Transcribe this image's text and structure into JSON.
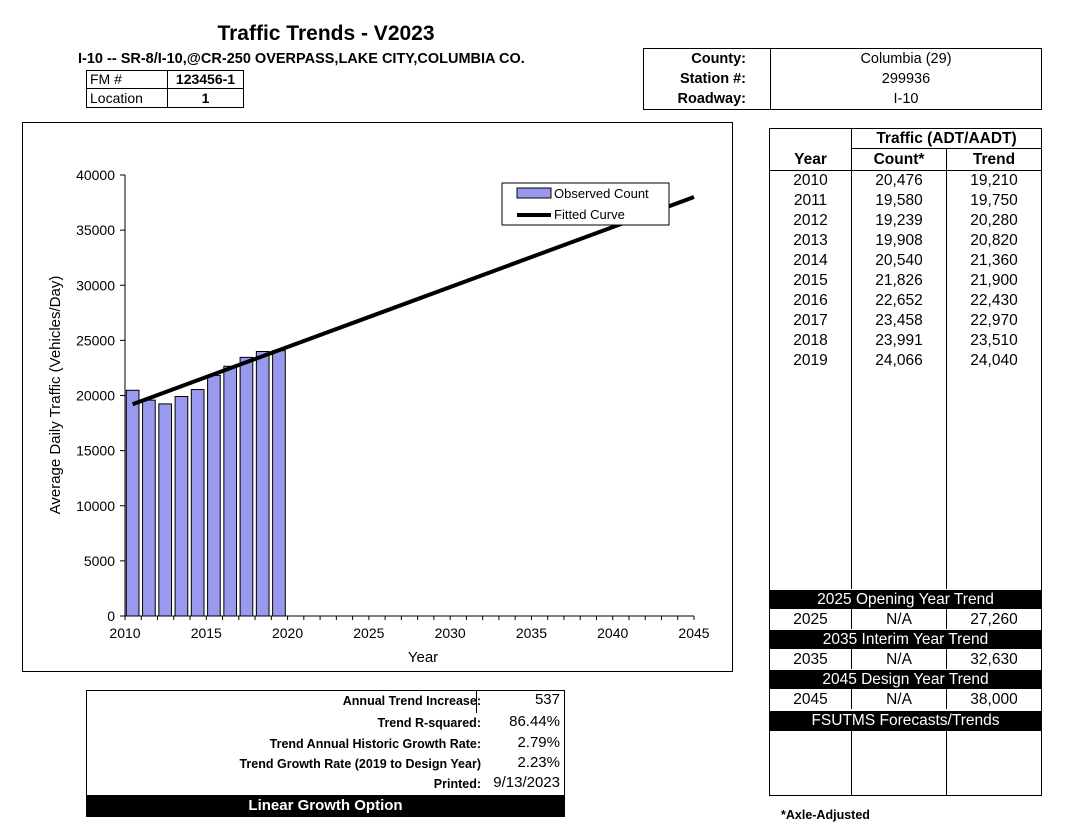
{
  "header": {
    "title": "Traffic Trends - V2023",
    "subtitle": "I-10 -- SR-8/I-10,@CR-250 OVERPASS,LAKE CITY,COLUMBIA CO.",
    "fm_label": "FM #",
    "fm_value": "123456-1",
    "location_label": "Location",
    "location_value": "1"
  },
  "site": {
    "county_label": "County:",
    "county_value": "Columbia (29)",
    "station_label": "Station #:",
    "station_value": "299936",
    "roadway_label": "Roadway:",
    "roadway_value": "I-10"
  },
  "chart_data": {
    "type": "bar",
    "xlabel": "Year",
    "ylabel": "Average Daily Traffic (Vehicles/Day)",
    "xlim": [
      2010,
      2045
    ],
    "ylim": [
      0,
      40000
    ],
    "x_ticks": [
      "2010",
      "2015",
      "2020",
      "2025",
      "2030",
      "2035",
      "2040",
      "2045"
    ],
    "y_ticks": [
      "0",
      "5000",
      "10000",
      "15000",
      "20000",
      "25000",
      "30000",
      "35000",
      "40000"
    ],
    "series": [
      {
        "name": "Observed Count",
        "kind": "bar",
        "x": [
          2010,
          2011,
          2012,
          2013,
          2014,
          2015,
          2016,
          2017,
          2018,
          2019
        ],
        "values": [
          20476,
          19580,
          19239,
          19908,
          20540,
          21826,
          22652,
          23458,
          23991,
          24066
        ]
      },
      {
        "name": "Fitted Curve",
        "kind": "line",
        "x": [
          2010,
          2045
        ],
        "values": [
          19210,
          38000
        ]
      }
    ],
    "bar_color": "#9999ee",
    "line_color": "#000000",
    "legend_position": "top-right"
  },
  "table": {
    "group_header": "Traffic (ADT/AADT)",
    "col_year": "Year",
    "col_count": "Count*",
    "col_trend": "Trend",
    "rows": [
      {
        "year": "2010",
        "count": "20,476",
        "trend": "19,210"
      },
      {
        "year": "2011",
        "count": "19,580",
        "trend": "19,750"
      },
      {
        "year": "2012",
        "count": "19,239",
        "trend": "20,280"
      },
      {
        "year": "2013",
        "count": "19,908",
        "trend": "20,820"
      },
      {
        "year": "2014",
        "count": "20,540",
        "trend": "21,360"
      },
      {
        "year": "2015",
        "count": "21,826",
        "trend": "21,900"
      },
      {
        "year": "2016",
        "count": "22,652",
        "trend": "22,430"
      },
      {
        "year": "2017",
        "count": "23,458",
        "trend": "22,970"
      },
      {
        "year": "2018",
        "count": "23,991",
        "trend": "23,510"
      },
      {
        "year": "2019",
        "count": "24,066",
        "trend": "24,040"
      }
    ],
    "opening_band": "2025 Opening Year Trend",
    "opening_row": {
      "year": "2025",
      "count": "N/A",
      "trend": "27,260"
    },
    "interim_band": "2035 Interim Year Trend",
    "interim_row": {
      "year": "2035",
      "count": "N/A",
      "trend": "32,630"
    },
    "design_band": "2045 Design Year Trend",
    "design_row": {
      "year": "2045",
      "count": "N/A",
      "trend": "38,000"
    },
    "fsutms_band": "FSUTMS Forecasts/Trends"
  },
  "stats": {
    "annual_increase_label": "Annual Trend Increase:",
    "annual_increase_value": "537",
    "r_squared_label": "Trend R-squared:",
    "r_squared_value": "86.44%",
    "historic_growth_label": "Trend Annual Historic Growth Rate:",
    "historic_growth_value": "2.79%",
    "design_growth_label": "Trend Growth Rate (2019 to Design Year)",
    "design_growth_value": "2.23%",
    "printed_label": "Printed:",
    "printed_value": "9/13/2023",
    "footer": "Linear Growth Option"
  },
  "note": "*Axle-Adjusted"
}
